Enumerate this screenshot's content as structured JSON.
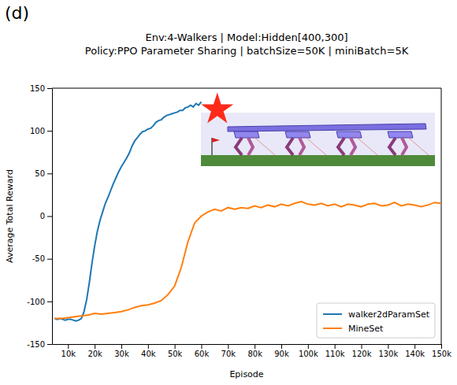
{
  "chart_data": {
    "type": "line",
    "panel_label": "(d)",
    "title": "Env:4-Walkers | Model:Hidden[400,300]",
    "subtitle": "Policy:PPO Parameter Sharing | batchSize=50K | miniBatch=5K",
    "x_label": "Episode",
    "y_label": "Average Total Reward",
    "xlim": [
      4000,
      150000
    ],
    "ylim": [
      -150,
      150
    ],
    "xticks": [
      {
        "value": 10000,
        "label": "10k"
      },
      {
        "value": 20000,
        "label": "20k"
      },
      {
        "value": 30000,
        "label": "30k"
      },
      {
        "value": 40000,
        "label": "40k"
      },
      {
        "value": 50000,
        "label": "50k"
      },
      {
        "value": 60000,
        "label": "60k"
      },
      {
        "value": 70000,
        "label": "70k"
      },
      {
        "value": 80000,
        "label": "80k"
      },
      {
        "value": 90000,
        "label": "90k"
      },
      {
        "value": 100000,
        "label": "100k"
      },
      {
        "value": 110000,
        "label": "110k"
      },
      {
        "value": 120000,
        "label": "120k"
      },
      {
        "value": 130000,
        "label": "130k"
      },
      {
        "value": 140000,
        "label": "140k"
      },
      {
        "value": 150000,
        "label": "150k"
      }
    ],
    "yticks": [
      -150,
      -100,
      -50,
      0,
      50,
      100,
      150
    ],
    "grid": false,
    "legend": "lower right",
    "highlight": {
      "x": 66000,
      "y": 125,
      "marker": "star",
      "color": "#ff2a1a"
    },
    "series": [
      {
        "name": "walker2dParamSet",
        "color": "#1f77b4",
        "x": [
          5000,
          6000,
          7000,
          8000,
          9000,
          10000,
          11000,
          12000,
          13000,
          14000,
          15000,
          16000,
          17000,
          18000,
          19000,
          20000,
          21000,
          22000,
          23000,
          24000,
          25000,
          26000,
          27000,
          28000,
          29000,
          30000,
          31000,
          32000,
          33000,
          34000,
          35000,
          36000,
          37000,
          38000,
          39000,
          40000,
          41000,
          42000,
          43000,
          44000,
          45000,
          46000,
          47000,
          48000,
          49000,
          50000,
          51000,
          52000,
          53000,
          54000,
          55000,
          56000,
          57000,
          58000,
          59000,
          60000
        ],
        "values": [
          -120,
          -121,
          -120,
          -121,
          -122,
          -121,
          -121,
          -122,
          -123,
          -122,
          -120,
          -112,
          -98,
          -78,
          -55,
          -35,
          -18,
          -5,
          5,
          15,
          22,
          30,
          38,
          45,
          52,
          58,
          63,
          68,
          74,
          82,
          88,
          92,
          96,
          99,
          100,
          102,
          103,
          106,
          110,
          112,
          113,
          116,
          118,
          119,
          120,
          121,
          122,
          124,
          124,
          127,
          128,
          130,
          128,
          132,
          130,
          134
        ]
      },
      {
        "name": "MineSet",
        "color": "#ff7f0e",
        "x": [
          5000,
          7500,
          10000,
          12500,
          15000,
          17500,
          20000,
          22500,
          25000,
          27500,
          30000,
          32500,
          35000,
          37500,
          40000,
          42500,
          45000,
          47500,
          50000,
          52500,
          55000,
          57500,
          60000,
          62500,
          65000,
          67500,
          70000,
          72500,
          75000,
          77500,
          80000,
          82500,
          85000,
          87500,
          90000,
          92500,
          95000,
          97500,
          100000,
          102500,
          105000,
          107500,
          110000,
          112500,
          115000,
          117500,
          120000,
          122500,
          125000,
          127500,
          130000,
          132500,
          135000,
          137500,
          140000,
          142500,
          145000,
          147500,
          150000
        ],
        "values": [
          -120,
          -120,
          -119,
          -118,
          -117,
          -116,
          -114,
          -115,
          -114,
          -113,
          -112,
          -110,
          -107,
          -105,
          -104,
          -102,
          -99,
          -92,
          -82,
          -60,
          -30,
          -8,
          0,
          5,
          8,
          6,
          10,
          8,
          10,
          9,
          12,
          10,
          13,
          11,
          14,
          12,
          15,
          17,
          14,
          13,
          15,
          12,
          14,
          11,
          14,
          13,
          11,
          14,
          15,
          12,
          13,
          16,
          12,
          14,
          13,
          11,
          13,
          16,
          15
        ]
      }
    ]
  }
}
